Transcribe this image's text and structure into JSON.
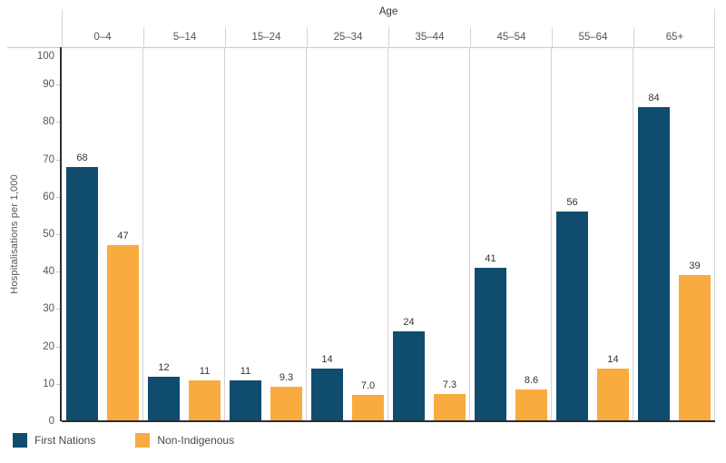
{
  "chart_data": {
    "type": "bar",
    "title": "",
    "col_header": "Age",
    "ylabel": "Hospitalisations per 1,000",
    "categories": [
      "0–4",
      "5–14",
      "15–24",
      "25–34",
      "35–44",
      "45–54",
      "55–64",
      "65+"
    ],
    "series": [
      {
        "name": "First Nations",
        "color": "#0F4C6E",
        "values": [
          68,
          12,
          11,
          14,
          24,
          41,
          56,
          84
        ],
        "labels": [
          "68",
          "12",
          "11",
          "14",
          "24",
          "41",
          "56",
          "84"
        ]
      },
      {
        "name": "Non-Indigenous",
        "color": "#FAAB40",
        "values": [
          47,
          11,
          9.3,
          7.0,
          7.3,
          8.6,
          14,
          39
        ],
        "labels": [
          "47",
          "11",
          "9.3",
          "7.0",
          "7.3",
          "8.6",
          "14",
          "39"
        ]
      }
    ],
    "yticks": [
      0,
      10,
      20,
      30,
      40,
      50,
      60,
      70,
      80,
      90,
      100
    ],
    "ylim": [
      0,
      100
    ],
    "grid": "column-dividers-only",
    "legend_position": "bottom-left",
    "colors": {
      "axis": "#2e2e2e",
      "divider": "#d4d4d4",
      "tick_text": "#555555",
      "value_text": "#333333"
    }
  }
}
